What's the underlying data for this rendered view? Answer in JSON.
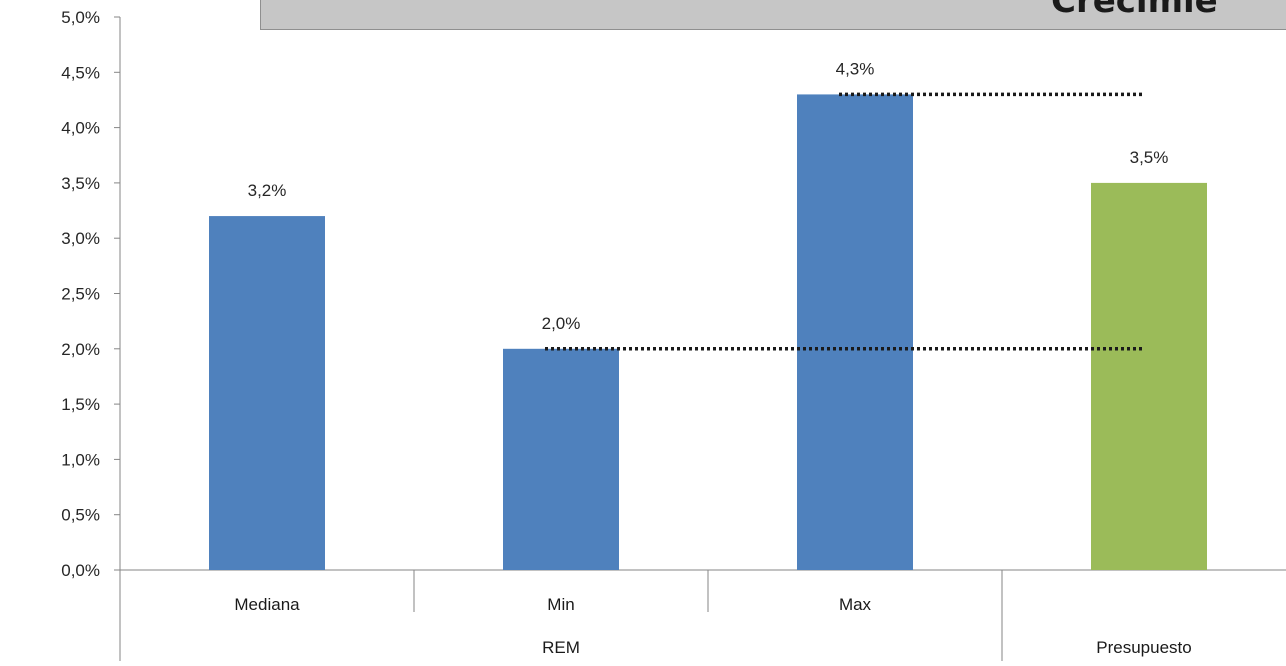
{
  "chart_data": {
    "type": "bar",
    "title": "Crecimie",
    "categories": [
      "Mediana",
      "Min",
      "Max",
      ""
    ],
    "groups": [
      {
        "label": "REM",
        "categories": [
          "Mediana",
          "Min",
          "Max"
        ]
      },
      {
        "label": "Presupuesto",
        "categories": [
          ""
        ]
      }
    ],
    "values": [
      3.2,
      2.0,
      4.3,
      3.5
    ],
    "value_labels": [
      "3,2%",
      "2,0%",
      "4,3%",
      "3,5%"
    ],
    "bar_colors": [
      "#4f81bd",
      "#4f81bd",
      "#4f81bd",
      "#9bbb59"
    ],
    "ylim": [
      0,
      5
    ],
    "yticks": [
      0,
      0.5,
      1,
      1.5,
      2,
      2.5,
      3,
      3.5,
      4,
      4.5,
      5
    ],
    "ytick_labels": [
      "0,0%",
      "0,5%",
      "1,0%",
      "1,5%",
      "2,0%",
      "2,5%",
      "3,0%",
      "3,5%",
      "4,0%",
      "4,5%",
      "5,0%"
    ],
    "reference_lines": [
      {
        "from_category": "Min",
        "value": 2.0
      },
      {
        "from_category": "Max",
        "value": 4.3
      }
    ],
    "grid": false,
    "legend": "none"
  }
}
